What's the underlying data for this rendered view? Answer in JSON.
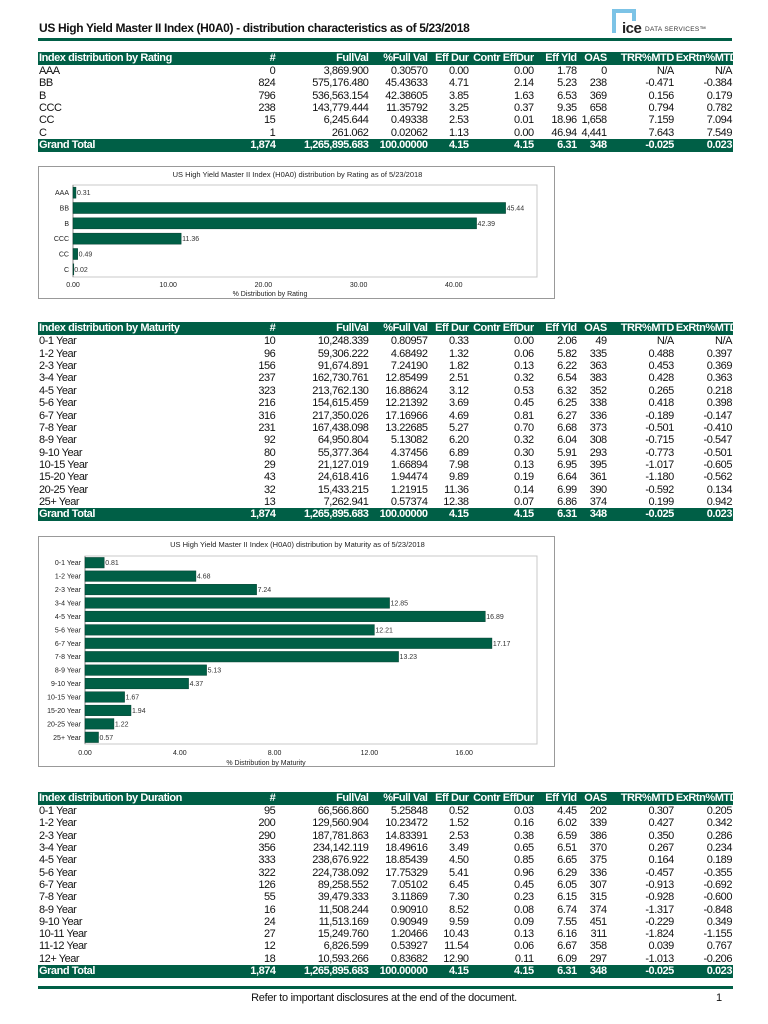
{
  "header": {
    "title": "US High Yield Master II Index (H0A0) - distribution characteristics as of 5/23/2018",
    "logo_text": "ice DATA SERVICES™",
    "logo_ice": "ice",
    "logo_services": "DATA SERVICES™"
  },
  "colors": {
    "brand_green": "#005f46",
    "logo_blue": "#7cc3e6"
  },
  "columns": [
    "#",
    "FullVal",
    "%Full Val",
    "Eff Dur",
    "Contr EffDur",
    "Eff Yld",
    "OAS",
    "TRR%MTD",
    "ExRtn%MTD"
  ],
  "tables": [
    {
      "title": "Index distribution by Rating",
      "rows": [
        [
          "AAA",
          "0",
          "3,869.900",
          "0.30570",
          "0.00",
          "0.00",
          "1.78",
          "0",
          "N/A",
          "N/A"
        ],
        [
          "BB",
          "824",
          "575,176.480",
          "45.43633",
          "4.71",
          "2.14",
          "5.23",
          "238",
          "-0.471",
          "-0.384"
        ],
        [
          "B",
          "796",
          "536,563.154",
          "42.38605",
          "3.85",
          "1.63",
          "6.53",
          "369",
          "0.156",
          "0.179"
        ],
        [
          "CCC",
          "238",
          "143,779.444",
          "11.35792",
          "3.25",
          "0.37",
          "9.35",
          "658",
          "0.794",
          "0.782"
        ],
        [
          "CC",
          "15",
          "6,245.644",
          "0.49338",
          "2.53",
          "0.01",
          "18.96",
          "1,658",
          "7.159",
          "7.094"
        ],
        [
          "C",
          "1",
          "261.062",
          "0.02062",
          "1.13",
          "0.00",
          "46.94",
          "4,441",
          "7.643",
          "7.549"
        ]
      ],
      "total": [
        "Grand Total",
        "1,874",
        "1,265,895.683",
        "100.00000",
        "4.15",
        "4.15",
        "6.31",
        "348",
        "-0.025",
        "0.023"
      ]
    },
    {
      "title": "Index distribution by Maturity",
      "rows": [
        [
          "0-1 Year",
          "10",
          "10,248.339",
          "0.80957",
          "0.33",
          "0.00",
          "2.06",
          "49",
          "N/A",
          "N/A"
        ],
        [
          "1-2 Year",
          "96",
          "59,306.222",
          "4.68492",
          "1.32",
          "0.06",
          "5.82",
          "335",
          "0.488",
          "0.397"
        ],
        [
          "2-3 Year",
          "156",
          "91,674.891",
          "7.24190",
          "1.82",
          "0.13",
          "6.22",
          "363",
          "0.453",
          "0.369"
        ],
        [
          "3-4 Year",
          "237",
          "162,730.761",
          "12.85499",
          "2.51",
          "0.32",
          "6.54",
          "383",
          "0.428",
          "0.363"
        ],
        [
          "4-5 Year",
          "323",
          "213,762.130",
          "16.88624",
          "3.12",
          "0.53",
          "6.32",
          "352",
          "0.265",
          "0.218"
        ],
        [
          "5-6 Year",
          "216",
          "154,615.459",
          "12.21392",
          "3.69",
          "0.45",
          "6.25",
          "338",
          "0.418",
          "0.398"
        ],
        [
          "6-7 Year",
          "316",
          "217,350.026",
          "17.16966",
          "4.69",
          "0.81",
          "6.27",
          "336",
          "-0.189",
          "-0.147"
        ],
        [
          "7-8 Year",
          "231",
          "167,438.098",
          "13.22685",
          "5.27",
          "0.70",
          "6.68",
          "373",
          "-0.501",
          "-0.410"
        ],
        [
          "8-9 Year",
          "92",
          "64,950.804",
          "5.13082",
          "6.20",
          "0.32",
          "6.04",
          "308",
          "-0.715",
          "-0.547"
        ],
        [
          "9-10 Year",
          "80",
          "55,377.364",
          "4.37456",
          "6.89",
          "0.30",
          "5.91",
          "293",
          "-0.773",
          "-0.501"
        ],
        [
          "10-15 Year",
          "29",
          "21,127.019",
          "1.66894",
          "7.98",
          "0.13",
          "6.95",
          "395",
          "-1.017",
          "-0.605"
        ],
        [
          "15-20 Year",
          "43",
          "24,618.416",
          "1.94474",
          "9.89",
          "0.19",
          "6.64",
          "361",
          "-1.180",
          "-0.562"
        ],
        [
          "20-25 Year",
          "32",
          "15,433.215",
          "1.21915",
          "11.36",
          "0.14",
          "6.99",
          "390",
          "-0.592",
          "0.134"
        ],
        [
          "25+ Year",
          "13",
          "7,262.941",
          "0.57374",
          "12.38",
          "0.07",
          "6.86",
          "374",
          "0.199",
          "0.942"
        ]
      ],
      "total": [
        "Grand Total",
        "1,874",
        "1,265,895.683",
        "100.00000",
        "4.15",
        "4.15",
        "6.31",
        "348",
        "-0.025",
        "0.023"
      ]
    },
    {
      "title": "Index distribution by Duration",
      "rows": [
        [
          "0-1 Year",
          "95",
          "66,566.860",
          "5.25848",
          "0.52",
          "0.03",
          "4.45",
          "202",
          "0.307",
          "0.205"
        ],
        [
          "1-2 Year",
          "200",
          "129,560.904",
          "10.23472",
          "1.52",
          "0.16",
          "6.02",
          "339",
          "0.427",
          "0.342"
        ],
        [
          "2-3 Year",
          "290",
          "187,781.863",
          "14.83391",
          "2.53",
          "0.38",
          "6.59",
          "386",
          "0.350",
          "0.286"
        ],
        [
          "3-4 Year",
          "356",
          "234,142.119",
          "18.49616",
          "3.49",
          "0.65",
          "6.51",
          "370",
          "0.267",
          "0.234"
        ],
        [
          "4-5 Year",
          "333",
          "238,676.922",
          "18.85439",
          "4.50",
          "0.85",
          "6.65",
          "375",
          "0.164",
          "0.189"
        ],
        [
          "5-6 Year",
          "322",
          "224,738.092",
          "17.75329",
          "5.41",
          "0.96",
          "6.29",
          "336",
          "-0.457",
          "-0.355"
        ],
        [
          "6-7 Year",
          "126",
          "89,258.552",
          "7.05102",
          "6.45",
          "0.45",
          "6.05",
          "307",
          "-0.913",
          "-0.692"
        ],
        [
          "7-8 Year",
          "55",
          "39,479.333",
          "3.11869",
          "7.30",
          "0.23",
          "6.15",
          "315",
          "-0.928",
          "-0.600"
        ],
        [
          "8-9 Year",
          "16",
          "11,508.244",
          "0.90910",
          "8.52",
          "0.08",
          "6.74",
          "374",
          "-1.317",
          "-0.848"
        ],
        [
          "9-10 Year",
          "24",
          "11,513.169",
          "0.90949",
          "9.59",
          "0.09",
          "7.55",
          "451",
          "-0.229",
          "0.349"
        ],
        [
          "10-11 Year",
          "27",
          "15,249.760",
          "1.20466",
          "10.43",
          "0.13",
          "6.16",
          "311",
          "-1.824",
          "-1.155"
        ],
        [
          "11-12 Year",
          "12",
          "6,826.599",
          "0.53927",
          "11.54",
          "0.06",
          "6.67",
          "358",
          "0.039",
          "0.767"
        ],
        [
          "12+ Year",
          "18",
          "10,593.266",
          "0.83682",
          "12.90",
          "0.11",
          "6.09",
          "297",
          "-1.013",
          "-0.206"
        ]
      ],
      "total": [
        "Grand Total",
        "1,874",
        "1,265,895.683",
        "100.00000",
        "4.15",
        "4.15",
        "6.31",
        "348",
        "-0.025",
        "0.023"
      ]
    }
  ],
  "chart_data": [
    {
      "type": "bar",
      "orientation": "horizontal",
      "title": "US High Yield Master II Index (H0A0) distribution by Rating as of 5/23/2018",
      "xlabel": "% Distribution by Rating",
      "ylabel": "",
      "categories": [
        "AAA",
        "BB",
        "B",
        "CCC",
        "CC",
        "C"
      ],
      "values": [
        0.31,
        45.44,
        42.39,
        11.36,
        0.49,
        0.02
      ],
      "data_labels": [
        "0.31",
        "45.44",
        "42.39",
        "11.36",
        "0.49",
        "0.02"
      ],
      "xlim": [
        0,
        46.5
      ],
      "x_ticks": [
        "0.00",
        "10.00",
        "20.00",
        "30.00",
        "40.00"
      ],
      "x_tick_values": [
        0,
        10,
        20,
        30,
        40
      ],
      "grid": false,
      "bar_color": "#005f46"
    },
    {
      "type": "bar",
      "orientation": "horizontal",
      "title": "US High Yield Master II Index (H0A0) distribution by Maturity as of 5/23/2018",
      "xlabel": "% Distribution by Maturity",
      "ylabel": "",
      "categories": [
        "0-1 Year",
        "1-2 Year",
        "2-3 Year",
        "3-4 Year",
        "4-5 Year",
        "5-6 Year",
        "6-7 Year",
        "7-8 Year",
        "8-9 Year",
        "9-10 Year",
        "10-15 Year",
        "15-20 Year",
        "20-25 Year",
        "25+ Year"
      ],
      "values": [
        0.81,
        4.68,
        7.24,
        12.85,
        16.89,
        12.21,
        17.17,
        13.23,
        5.13,
        4.37,
        1.67,
        1.94,
        1.22,
        0.57
      ],
      "data_labels": [
        "0.81",
        "4.68",
        "7.24",
        "12.85",
        "16.89",
        "12.21",
        "17.17",
        "13.23",
        "5.13",
        "4.37",
        "1.67",
        "1.94",
        "1.22",
        "0.57"
      ],
      "xlim": [
        0,
        19
      ],
      "x_ticks": [
        "0.00",
        "4.00",
        "8.00",
        "12.00",
        "16.00"
      ],
      "x_tick_values": [
        0,
        4,
        8,
        12,
        16
      ],
      "grid": false,
      "bar_color": "#005f46"
    }
  ],
  "footer": {
    "disclaimer": "Refer to important disclosures at the end of the document.",
    "page_number": "1"
  }
}
